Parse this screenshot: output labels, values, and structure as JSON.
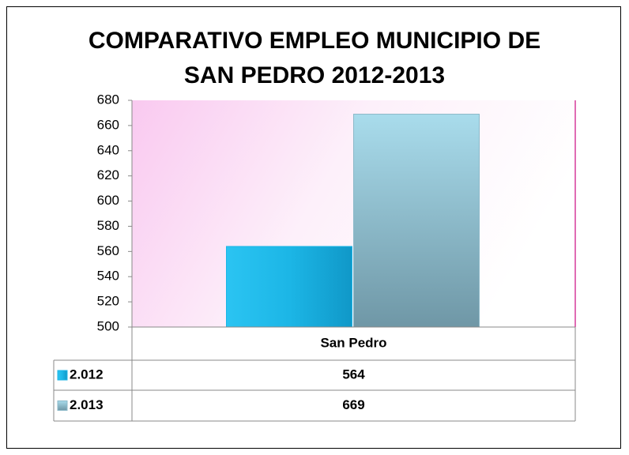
{
  "chart_data": {
    "type": "bar",
    "title": "COMPARATIVO EMPLEO  MUNICIPIO DE SAN PEDRO 2012-2013",
    "categories": [
      "San Pedro"
    ],
    "series": [
      {
        "name": "2.012",
        "color": "#1cb6e6",
        "values": [
          564
        ]
      },
      {
        "name": "2.013",
        "color": "#8cb9c9",
        "values": [
          669
        ]
      }
    ],
    "ylim": [
      500,
      680
    ],
    "yticks": [
      500,
      520,
      540,
      560,
      580,
      600,
      620,
      640,
      660,
      680
    ],
    "data_table": true
  }
}
